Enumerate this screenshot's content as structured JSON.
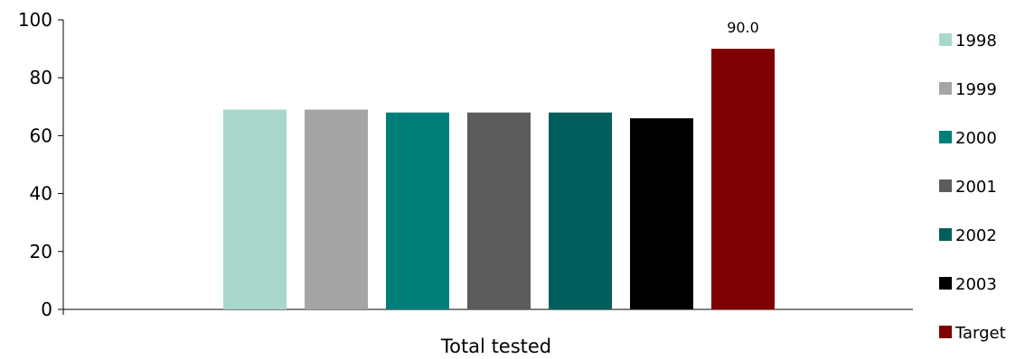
{
  "chart_data": {
    "type": "bar",
    "categories": [
      "Total tested"
    ],
    "series": [
      {
        "name": "1998",
        "values": [
          69
        ],
        "color": "#A8D8CC"
      },
      {
        "name": "1999",
        "values": [
          69
        ],
        "color": "#A5A5A5"
      },
      {
        "name": "2000",
        "values": [
          68
        ],
        "color": "#007F7A"
      },
      {
        "name": "2001",
        "values": [
          68
        ],
        "color": "#5C5C5C"
      },
      {
        "name": "2002",
        "values": [
          68
        ],
        "color": "#005E5C"
      },
      {
        "name": "2003",
        "values": [
          66
        ],
        "color": "#000000"
      },
      {
        "name": "Target",
        "values": [
          90
        ],
        "color": "#7F0000",
        "data_label": "90.0"
      }
    ],
    "ylim": [
      0,
      100
    ],
    "yticks": [
      "0",
      "20",
      "40",
      "60",
      "80",
      "100"
    ],
    "xlabel": "",
    "ylabel": "",
    "grid": false,
    "legend_position": "right"
  }
}
